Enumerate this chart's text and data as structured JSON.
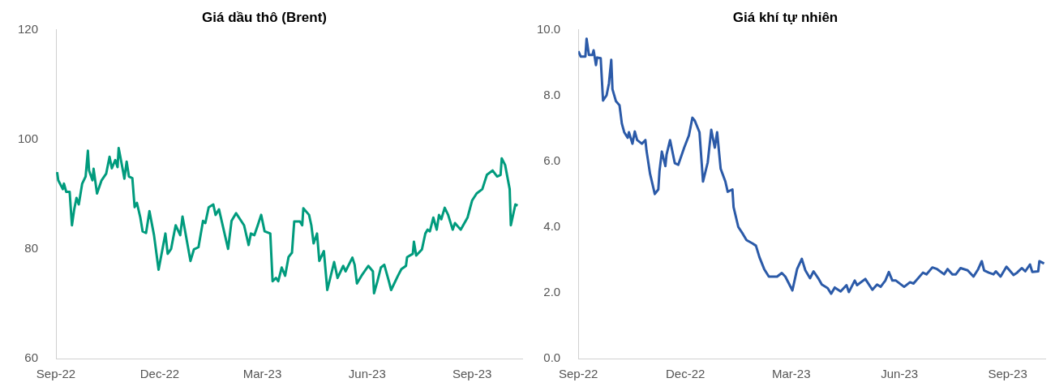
{
  "chart_data": [
    {
      "type": "line",
      "title": "Giá dầu thô (Brent)",
      "color": "#009b7d",
      "marker": "none",
      "grid": false,
      "x": [
        "2022-09-02",
        "2022-09-03",
        "2022-09-07",
        "2022-09-08",
        "2022-09-10",
        "2022-09-13",
        "2022-09-15",
        "2022-09-17",
        "2022-09-19",
        "2022-09-21",
        "2022-09-24",
        "2022-09-27",
        "2022-09-29",
        "2022-09-30",
        "2022-10-03",
        "2022-10-04",
        "2022-10-07",
        "2022-10-11",
        "2022-10-15",
        "2022-10-18",
        "2022-10-20",
        "2022-10-23",
        "2022-10-25",
        "2022-10-26",
        "2022-10-30",
        "2022-10-31",
        "2022-11-02",
        "2022-11-04",
        "2022-11-07",
        "2022-11-09",
        "2022-11-11",
        "2022-11-14",
        "2022-11-16",
        "2022-11-19",
        "2022-11-22",
        "2022-11-26",
        "2022-11-30",
        "2022-12-06",
        "2022-12-08",
        "2022-12-11",
        "2022-12-13",
        "2022-12-15",
        "2022-12-19",
        "2022-12-21",
        "2022-12-28",
        "2022-12-31",
        "2023-01-04",
        "2023-01-08",
        "2023-01-10",
        "2023-01-13",
        "2023-01-17",
        "2023-01-19",
        "2023-01-22",
        "2023-01-30",
        "2023-02-02",
        "2023-02-06",
        "2023-02-13",
        "2023-02-17",
        "2023-02-19",
        "2023-02-22",
        "2023-02-25",
        "2023-02-28",
        "2023-03-03",
        "2023-03-08",
        "2023-03-10",
        "2023-03-13",
        "2023-03-15",
        "2023-03-18",
        "2023-03-21",
        "2023-03-24",
        "2023-03-27",
        "2023-03-29",
        "2023-04-03",
        "2023-04-05",
        "2023-04-06",
        "2023-04-11",
        "2023-04-13",
        "2023-04-15",
        "2023-04-18",
        "2023-04-20",
        "2023-04-24",
        "2023-04-27",
        "2023-05-03",
        "2023-05-06",
        "2023-05-11",
        "2023-05-13",
        "2023-05-19",
        "2023-05-21",
        "2023-05-23",
        "2023-05-27",
        "2023-06-02",
        "2023-06-06",
        "2023-06-07",
        "2023-06-10",
        "2023-06-13",
        "2023-06-16",
        "2023-06-20",
        "2023-06-22",
        "2023-06-28",
        "2023-07-01",
        "2023-07-05",
        "2023-07-06",
        "2023-07-11",
        "2023-07-12",
        "2023-07-14",
        "2023-07-19",
        "2023-07-22",
        "2023-07-24",
        "2023-07-26",
        "2023-07-29",
        "2023-08-01",
        "2023-08-03",
        "2023-08-05",
        "2023-08-08",
        "2023-08-11",
        "2023-08-15",
        "2023-08-17",
        "2023-08-22",
        "2023-08-28",
        "2023-09-01",
        "2023-09-05",
        "2023-09-10",
        "2023-09-14",
        "2023-09-19",
        "2023-09-23",
        "2023-09-26",
        "2023-09-27",
        "2023-09-30",
        "2023-10-04",
        "2023-10-05",
        "2023-10-09",
        "2023-10-11"
      ],
      "values": [
        94.0,
        92.5,
        90.9,
        91.9,
        90.4,
        90.4,
        84.3,
        87.2,
        89.3,
        88.1,
        91.9,
        93.2,
        97.9,
        94.3,
        92.5,
        94.6,
        90.1,
        92.5,
        93.7,
        96.8,
        94.7,
        96.2,
        94.9,
        98.4,
        94.0,
        92.8,
        95.9,
        93.2,
        92.9,
        87.6,
        88.4,
        85.7,
        83.2,
        82.9,
        86.9,
        82.5,
        76.2,
        82.8,
        79.1,
        80.0,
        82.2,
        84.3,
        82.5,
        85.9,
        77.8,
        79.9,
        80.3,
        85.1,
        84.7,
        87.6,
        88.1,
        86.2,
        87.2,
        80.0,
        85.1,
        86.5,
        84.3,
        80.7,
        82.8,
        82.5,
        84.3,
        86.2,
        83.2,
        82.8,
        74.1,
        74.7,
        74.1,
        76.6,
        75.1,
        78.5,
        79.3,
        85.0,
        85.0,
        84.3,
        87.4,
        86.2,
        84.3,
        81.0,
        82.8,
        77.8,
        79.6,
        72.5,
        77.6,
        74.7,
        76.9,
        75.9,
        78.4,
        77.1,
        73.7,
        75.1,
        76.9,
        75.9,
        71.9,
        74.1,
        76.6,
        77.1,
        74.1,
        72.5,
        75.1,
        76.3,
        76.9,
        78.5,
        79.1,
        81.3,
        78.8,
        79.9,
        82.8,
        83.5,
        83.2,
        85.7,
        83.5,
        86.2,
        85.4,
        87.5,
        86.2,
        83.5,
        84.7,
        83.5,
        85.7,
        88.8,
        90.1,
        90.9,
        93.5,
        94.3,
        93.2,
        93.5,
        96.5,
        95.3,
        90.9,
        84.3,
        88.1,
        87.9
      ],
      "xlim": [
        "2022-09-01",
        "2023-10-15"
      ],
      "xticks": [
        {
          "value": "2022-09-01",
          "label": "Sep-22"
        },
        {
          "value": "2022-12-01",
          "label": "Dec-22"
        },
        {
          "value": "2023-03-01",
          "label": "Mar-23"
        },
        {
          "value": "2023-06-01",
          "label": "Jun-23"
        },
        {
          "value": "2023-09-01",
          "label": "Sep-23"
        }
      ],
      "ylim": [
        60,
        120
      ],
      "yticks": [
        60,
        80,
        100,
        120
      ]
    },
    {
      "type": "line",
      "title": "Giá khí tự nhiên",
      "color": "#2b5aa8",
      "marker": "none",
      "grid": false,
      "x": [
        "2022-09-01",
        "2022-09-03",
        "2022-09-07",
        "2022-09-08",
        "2022-09-10",
        "2022-09-13",
        "2022-09-14",
        "2022-09-16",
        "2022-09-17",
        "2022-09-20",
        "2022-09-22",
        "2022-09-25",
        "2022-09-27",
        "2022-09-29",
        "2022-09-30",
        "2022-10-03",
        "2022-10-06",
        "2022-10-08",
        "2022-10-10",
        "2022-10-13",
        "2022-10-14",
        "2022-10-17",
        "2022-10-19",
        "2022-10-21",
        "2022-10-25",
        "2022-10-28",
        "2022-10-29",
        "2022-11-01",
        "2022-11-05",
        "2022-11-08",
        "2022-11-09",
        "2022-11-11",
        "2022-11-14",
        "2022-11-15",
        "2022-11-18",
        "2022-11-22",
        "2022-11-25",
        "2022-11-30",
        "2022-12-04",
        "2022-12-07",
        "2022-12-09",
        "2022-12-13",
        "2022-12-16",
        "2022-12-20",
        "2022-12-23",
        "2022-12-26",
        "2022-12-28",
        "2022-12-31",
        "2023-01-04",
        "2023-01-06",
        "2023-01-10",
        "2023-01-11",
        "2023-01-15",
        "2023-01-19",
        "2023-01-22",
        "2023-01-27",
        "2023-01-30",
        "2023-02-02",
        "2023-02-06",
        "2023-02-10",
        "2023-02-17",
        "2023-02-21",
        "2023-02-24",
        "2023-03-02",
        "2023-03-06",
        "2023-03-10",
        "2023-03-13",
        "2023-03-17",
        "2023-03-20",
        "2023-03-24",
        "2023-03-27",
        "2023-04-01",
        "2023-04-04",
        "2023-04-07",
        "2023-04-12",
        "2023-04-17",
        "2023-04-19",
        "2023-04-24",
        "2023-04-26",
        "2023-05-03",
        "2023-05-09",
        "2023-05-13",
        "2023-05-16",
        "2023-05-20",
        "2023-05-23",
        "2023-05-26",
        "2023-05-29",
        "2023-06-05",
        "2023-06-10",
        "2023-06-13",
        "2023-06-21",
        "2023-06-24",
        "2023-06-29",
        "2023-07-03",
        "2023-07-09",
        "2023-07-12",
        "2023-07-16",
        "2023-07-19",
        "2023-07-23",
        "2023-07-29",
        "2023-08-03",
        "2023-08-07",
        "2023-08-10",
        "2023-08-12",
        "2023-08-16",
        "2023-08-20",
        "2023-08-22",
        "2023-08-26",
        "2023-08-31",
        "2023-09-06",
        "2023-09-09",
        "2023-09-13",
        "2023-09-16",
        "2023-09-20",
        "2023-09-22",
        "2023-09-27",
        "2023-09-28",
        "2023-10-02"
      ],
      "values": [
        9.34,
        9.18,
        9.18,
        9.72,
        9.23,
        9.23,
        9.37,
        8.92,
        9.15,
        9.13,
        7.84,
        8.0,
        8.36,
        9.08,
        8.19,
        7.82,
        7.7,
        7.14,
        6.88,
        6.71,
        6.88,
        6.53,
        6.9,
        6.64,
        6.53,
        6.64,
        6.31,
        5.61,
        5.0,
        5.14,
        5.7,
        6.29,
        5.85,
        6.2,
        6.64,
        5.94,
        5.89,
        6.41,
        6.78,
        7.32,
        7.23,
        6.88,
        5.38,
        5.96,
        6.95,
        6.41,
        6.88,
        5.77,
        5.38,
        5.07,
        5.14,
        4.6,
        4.0,
        3.78,
        3.6,
        3.5,
        3.43,
        3.08,
        2.72,
        2.49,
        2.49,
        2.6,
        2.49,
        2.07,
        2.72,
        3.03,
        2.68,
        2.44,
        2.65,
        2.44,
        2.25,
        2.14,
        1.97,
        2.16,
        2.04,
        2.23,
        2.02,
        2.37,
        2.23,
        2.42,
        2.09,
        2.25,
        2.18,
        2.37,
        2.63,
        2.37,
        2.37,
        2.18,
        2.32,
        2.28,
        2.61,
        2.56,
        2.77,
        2.72,
        2.56,
        2.72,
        2.56,
        2.56,
        2.75,
        2.68,
        2.49,
        2.72,
        2.96,
        2.68,
        2.61,
        2.56,
        2.65,
        2.49,
        2.79,
        2.54,
        2.61,
        2.75,
        2.65,
        2.86,
        2.63,
        2.65,
        2.96,
        2.89
      ],
      "xlim": [
        "2022-09-01",
        "2023-10-03"
      ],
      "xticks": [
        {
          "value": "2022-09-01",
          "label": "Sep-22"
        },
        {
          "value": "2022-12-01",
          "label": "Dec-22"
        },
        {
          "value": "2023-03-01",
          "label": "Mar-23"
        },
        {
          "value": "2023-06-01",
          "label": "Jun-23"
        },
        {
          "value": "2023-09-01",
          "label": "Sep-23"
        }
      ],
      "ylim": [
        0,
        10
      ],
      "yticks": [
        {
          "value": 0,
          "label": "0.0"
        },
        {
          "value": 2,
          "label": "2.0"
        },
        {
          "value": 4,
          "label": "4.0"
        },
        {
          "value": 6,
          "label": "6.0"
        },
        {
          "value": 8,
          "label": "8.0"
        },
        {
          "value": 10,
          "label": "10.0"
        }
      ]
    }
  ]
}
